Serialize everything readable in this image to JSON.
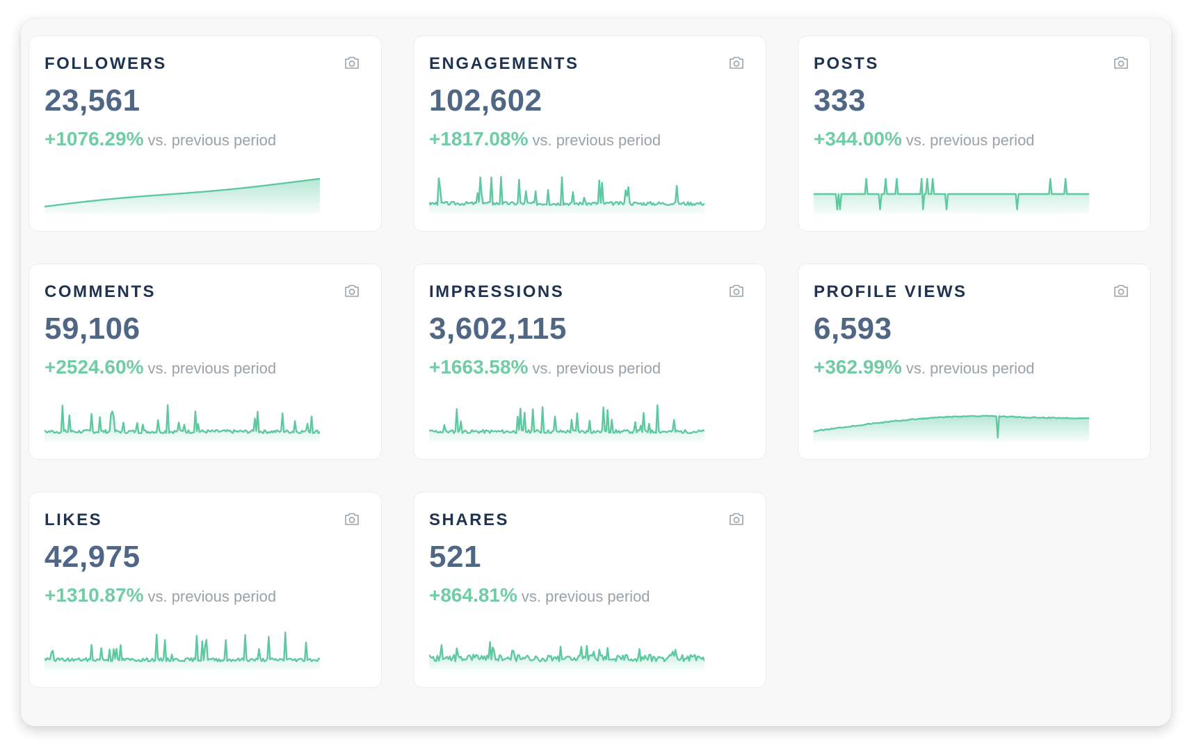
{
  "dashboard": {
    "accent_color": "#5ec9a0",
    "cards": [
      {
        "title": "FOLLOWERS",
        "value": "23,561",
        "change": "+1076.29%",
        "change_label": "vs. previous period",
        "camera_icon": "camera-icon",
        "trend": "rising"
      },
      {
        "title": "ENGAGEMENTS",
        "value": "102,602",
        "change": "+1817.08%",
        "change_label": "vs. previous period",
        "camera_icon": "camera-icon",
        "trend": "spiky"
      },
      {
        "title": "POSTS",
        "value": "333",
        "change": "+344.00%",
        "change_label": "vs. previous period",
        "camera_icon": "camera-icon",
        "trend": "flat-spikes"
      },
      {
        "title": "COMMENTS",
        "value": "59,106",
        "change": "+2524.60%",
        "change_label": "vs. previous period",
        "camera_icon": "camera-icon",
        "trend": "spiky"
      },
      {
        "title": "IMPRESSIONS",
        "value": "3,602,115",
        "change": "+1663.58%",
        "change_label": "vs. previous period",
        "camera_icon": "camera-icon",
        "trend": "spiky"
      },
      {
        "title": "PROFILE VIEWS",
        "value": "6,593",
        "change": "+362.99%",
        "change_label": "vs. previous period",
        "camera_icon": "camera-icon",
        "trend": "hump"
      },
      {
        "title": "LIKES",
        "value": "42,975",
        "change": "+1310.87%",
        "change_label": "vs. previous period",
        "camera_icon": "camera-icon",
        "trend": "spiky"
      },
      {
        "title": "SHARES",
        "value": "521",
        "change": "+864.81%",
        "change_label": "vs. previous period",
        "camera_icon": "camera-icon",
        "trend": "noisy"
      }
    ]
  }
}
